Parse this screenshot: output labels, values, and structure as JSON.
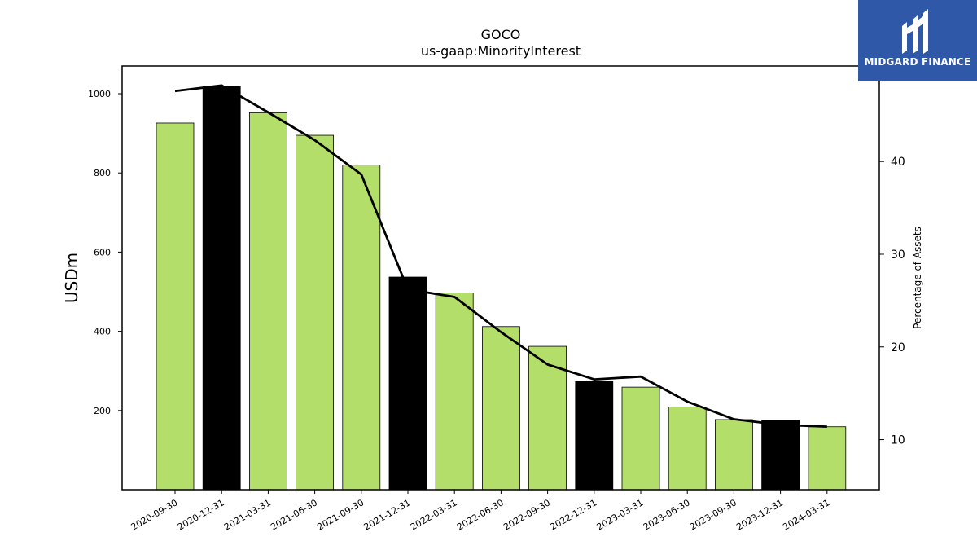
{
  "chart_data": {
    "type": "bar",
    "title": "GOCO",
    "subtitle": "us-gaap:MinorityInterest",
    "ylabel": "USDm",
    "y2label": "Percentage of Assets",
    "ylim": [
      0,
      1070
    ],
    "y2lim": [
      4.6,
      50.3
    ],
    "yticks": [
      200,
      400,
      600,
      800,
      1000
    ],
    "y2ticks": [
      10,
      20,
      30,
      40
    ],
    "categories": [
      "2020-09-30",
      "2020-12-31",
      "2021-03-31",
      "2021-06-30",
      "2021-09-30",
      "2021-12-31",
      "2022-03-31",
      "2022-06-30",
      "2022-09-30",
      "2022-12-31",
      "2023-03-31",
      "2023-06-30",
      "2023-09-30",
      "2023-12-31",
      "2024-03-31"
    ],
    "series": [
      {
        "type": "bar",
        "values": [
          926,
          1018,
          952,
          895,
          820,
          537,
          497,
          412,
          362,
          273,
          259,
          209,
          177,
          175,
          159
        ],
        "colors": [
          "#b3de69",
          "#000000",
          "#b3de69",
          "#b3de69",
          "#b3de69",
          "#000000",
          "#b3de69",
          "#b3de69",
          "#b3de69",
          "#000000",
          "#b3de69",
          "#b3de69",
          "#b3de69",
          "#000000",
          "#b3de69"
        ]
      },
      {
        "type": "line",
        "axis": "right",
        "values": [
          47.6,
          48.2,
          45.3,
          42.3,
          38.6,
          26.2,
          25.4,
          21.6,
          18.1,
          16.5,
          16.8,
          14.1,
          12.2,
          11.6,
          11.4
        ],
        "color": "#000000"
      }
    ],
    "grid": false
  },
  "logo": {
    "text": "MIDGARD FINANCE"
  }
}
